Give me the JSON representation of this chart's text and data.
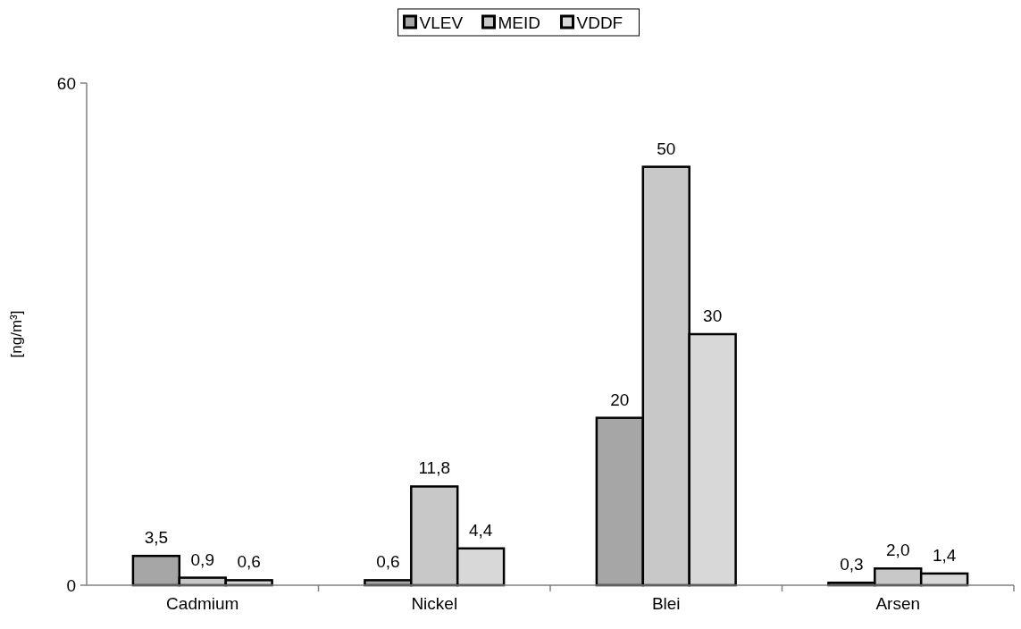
{
  "chart_data": {
    "type": "bar",
    "categories": [
      "Cadmium",
      "Nickel",
      "Blei",
      "Arsen"
    ],
    "ylabel": "[ng/m³]",
    "ylim": [
      0,
      60
    ],
    "yticks": [
      0,
      60
    ],
    "grid": false,
    "legend": "top",
    "series": [
      {
        "name": "VLEV",
        "color": "#a6a6a6",
        "values": [
          3.5,
          0.6,
          20,
          0.3
        ],
        "value_labels": [
          "3,5",
          "0,6",
          "20",
          "0,3"
        ]
      },
      {
        "name": "MEID",
        "color": "#c8c8c8",
        "values": [
          0.9,
          11.8,
          50,
          2.0
        ],
        "value_labels": [
          "0,9",
          "11,8",
          "50",
          "2,0"
        ]
      },
      {
        "name": "VDDF",
        "color": "#d8d8d8",
        "values": [
          0.6,
          4.4,
          30,
          1.4
        ],
        "value_labels": [
          "0,6",
          "4,4",
          "30",
          "1,4"
        ]
      }
    ]
  }
}
